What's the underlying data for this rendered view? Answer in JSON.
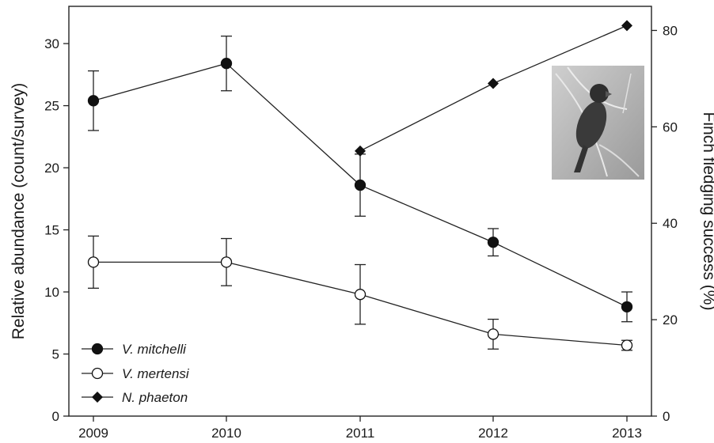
{
  "chart_data": {
    "type": "line",
    "x": [
      "2009",
      "2010",
      "2011",
      "2012",
      "2013"
    ],
    "ylabel_left": "Relative abundance (count/survey)",
    "ylabel_right": "Finch fledging success (%)",
    "ylim_left": [
      0,
      33
    ],
    "yticks_left": [
      0,
      5,
      10,
      15,
      20,
      25,
      30
    ],
    "ylim_right": [
      0,
      85
    ],
    "yticks_right": [
      0,
      20,
      40,
      60,
      80
    ],
    "series": [
      {
        "name": "V. mitchelli",
        "axis": "left",
        "marker": "filled-circle",
        "values": [
          25.4,
          28.4,
          18.6,
          14.0,
          8.8
        ],
        "errors": [
          2.4,
          2.2,
          2.5,
          1.1,
          1.2
        ]
      },
      {
        "name": "V. mertensi",
        "axis": "left",
        "marker": "open-circle",
        "values": [
          12.4,
          12.4,
          9.8,
          6.6,
          5.7
        ],
        "errors": [
          2.1,
          1.9,
          2.4,
          1.2,
          0.4
        ]
      },
      {
        "name": "N. phaeton",
        "axis": "right",
        "marker": "filled-diamond",
        "values": [
          null,
          null,
          55,
          69,
          81
        ],
        "errors": null
      }
    ],
    "legend": {
      "placement": "bottom-left",
      "items": [
        "V. mitchelli",
        "V. mertensi",
        "N. phaeton"
      ]
    },
    "inset_image": "parrot-photo",
    "grid": false
  }
}
